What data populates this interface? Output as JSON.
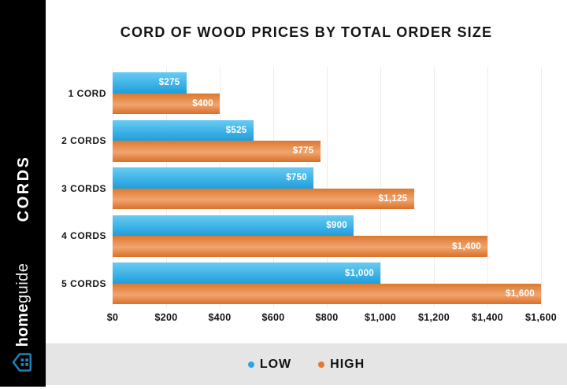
{
  "title": "CORD OF WOOD PRICES BY TOTAL ORDER SIZE",
  "sidebar": {
    "vertical_label": "CORDS",
    "brand_bold": "home",
    "brand_light": "guide"
  },
  "chart_data": {
    "type": "bar",
    "orientation": "horizontal",
    "categories": [
      "1 CORD",
      "2 CORDS",
      "3 CORDS",
      "4 CORDS",
      "5 CORDS"
    ],
    "series": [
      {
        "name": "LOW",
        "values": [
          275,
          525,
          750,
          900,
          1000
        ],
        "labels": [
          "$275",
          "$525",
          "$750",
          "$900",
          "$1,000"
        ]
      },
      {
        "name": "HIGH",
        "values": [
          400,
          775,
          1125,
          1400,
          1600
        ],
        "labels": [
          "$400",
          "$775",
          "$1,125",
          "$1,400",
          "$1,600"
        ]
      }
    ],
    "xlabel": "",
    "ylabel": "CORDS",
    "xlim": [
      0,
      1600
    ],
    "xticks": [
      0,
      200,
      400,
      600,
      800,
      1000,
      1200,
      1400,
      1600
    ],
    "xtick_labels": [
      "$0",
      "$200",
      "$400",
      "$600",
      "$800",
      "$1,000",
      "$1,200",
      "$1,400",
      "$1,600"
    ],
    "grid": true,
    "legend_position": "bottom"
  },
  "legend": {
    "items": [
      {
        "label": "LOW",
        "color": "#29A8DF"
      },
      {
        "label": "HIGH",
        "color": "#E2792F"
      }
    ]
  },
  "colors": {
    "low_gradient_top": "#68CBF3",
    "low_gradient_bottom": "#1E9EDC",
    "high_gradient_top": "#DC7830",
    "high_gradient_mid": "#F0A56E",
    "high_gradient_bottom": "#DB6F28",
    "grid": "#ECECEC",
    "sidebar_bg": "#000000",
    "legend_strip_bg": "#E5E5E5",
    "logo_blue": "#1E82B8"
  }
}
